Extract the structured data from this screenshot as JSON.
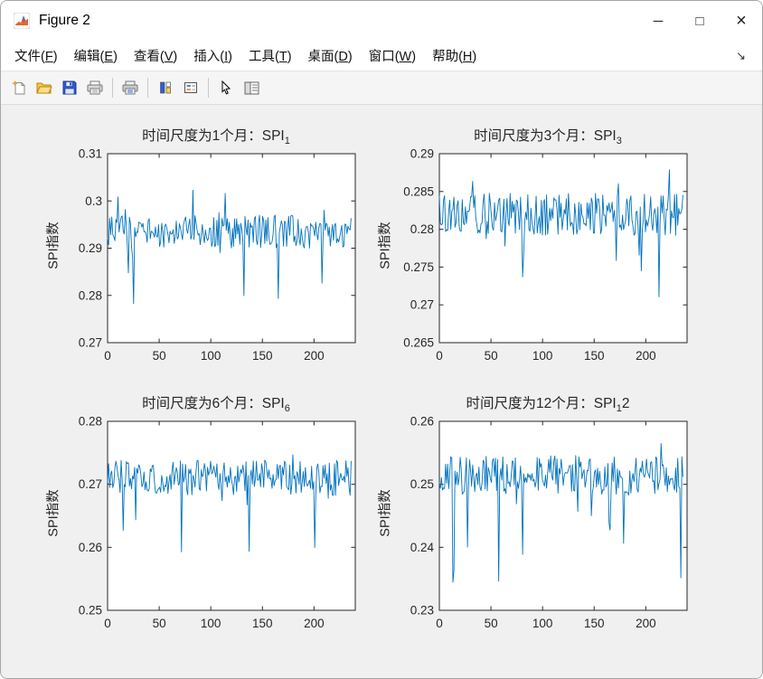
{
  "window": {
    "title": "Figure 2",
    "controls": [
      {
        "name": "minimize",
        "glyph": "─"
      },
      {
        "name": "maximize",
        "glyph": "□"
      },
      {
        "name": "close",
        "glyph": "×"
      }
    ]
  },
  "menubar": {
    "items": [
      {
        "name": "file",
        "text": "文件",
        "key": "F"
      },
      {
        "name": "edit",
        "text": "编辑",
        "key": "E"
      },
      {
        "name": "view",
        "text": "查看",
        "key": "V"
      },
      {
        "name": "insert",
        "text": "插入",
        "key": "I"
      },
      {
        "name": "tools",
        "text": "工具",
        "key": "T"
      },
      {
        "name": "desktop",
        "text": "桌面",
        "key": "D"
      },
      {
        "name": "window",
        "text": "窗口",
        "key": "W"
      },
      {
        "name": "help",
        "text": "帮助",
        "key": "H"
      }
    ],
    "overflow_arrow": "↘"
  },
  "toolbar": {
    "groups": [
      [
        "new-figure-icon",
        "open-file-icon",
        "save-figure-icon",
        "print-figure-icon"
      ],
      [
        "print-preview-icon"
      ],
      [
        "insert-colorbar-icon",
        "insert-legend-icon"
      ],
      [
        "edit-plot-icon",
        "property-inspector-icon"
      ]
    ]
  },
  "colors": {
    "line": "#0072BD",
    "axes": "#262626",
    "figure_bg": "#f0f0f0"
  },
  "chart_data": [
    {
      "type": "line",
      "name": "spi-1",
      "title": {
        "text": "时间尺度为1个月：SPI",
        "sub": "1",
        "tail": ""
      },
      "ylabel": "SPI指数",
      "xlim": [
        0,
        240
      ],
      "ylim": [
        0.27,
        0.31
      ],
      "xticks": [
        0,
        50,
        100,
        150,
        200
      ],
      "xtick_labels": [
        "0",
        "50",
        "100",
        "150",
        "200"
      ],
      "yticks": [
        0.27,
        0.28,
        0.29,
        0.3,
        0.31
      ],
      "ytick_labels": [
        "0.27",
        "0.28",
        "0.29",
        "0.3",
        "0.31"
      ],
      "series": {
        "n": 235,
        "x_max": 236,
        "seed": 20471,
        "base": 0.2935,
        "jitter": 0.0035,
        "spike_prob": 0.07,
        "spike_depth": 0.013,
        "up_prob": 0.03,
        "up_depth": 0.009
      }
    },
    {
      "type": "line",
      "name": "spi-3",
      "title": {
        "text": "时间尺度为3个月：SPI",
        "sub": "3",
        "tail": ""
      },
      "ylabel": "SPI指数",
      "xlim": [
        0,
        240
      ],
      "ylim": [
        0.265,
        0.29
      ],
      "xticks": [
        0,
        50,
        100,
        150,
        200
      ],
      "xtick_labels": [
        "0",
        "50",
        "100",
        "150",
        "200"
      ],
      "yticks": [
        0.265,
        0.27,
        0.275,
        0.28,
        0.285,
        0.29
      ],
      "ytick_labels": [
        "0.265",
        "0.27",
        "0.275",
        "0.28",
        "0.285",
        "0.29"
      ],
      "series": {
        "n": 235,
        "x_max": 236,
        "seed": 8842,
        "base": 0.282,
        "jitter": 0.0028,
        "spike_prob": 0.07,
        "spike_depth": 0.011,
        "up_prob": 0.03,
        "up_depth": 0.006
      }
    },
    {
      "type": "line",
      "name": "spi-6",
      "title": {
        "text": "时间尺度为6个月：SPI",
        "sub": "6",
        "tail": ""
      },
      "ylabel": "SPI指数",
      "xlim": [
        0,
        240
      ],
      "ylim": [
        0.25,
        0.28
      ],
      "xticks": [
        0,
        50,
        100,
        150,
        200
      ],
      "xtick_labels": [
        "0",
        "50",
        "100",
        "150",
        "200"
      ],
      "yticks": [
        0.25,
        0.26,
        0.27,
        0.28
      ],
      "ytick_labels": [
        "0.25",
        "0.26",
        "0.27",
        "0.28"
      ],
      "series": {
        "n": 235,
        "x_max": 236,
        "seed": 5150,
        "base": 0.271,
        "jitter": 0.0028,
        "spike_prob": 0.07,
        "spike_depth": 0.014,
        "up_prob": 0.02,
        "up_depth": 0.005
      }
    },
    {
      "type": "line",
      "name": "spi-12",
      "title": {
        "text": "时间尺度为12个月：SPI",
        "sub": "1",
        "tail": "2"
      },
      "ylabel": "SPI指数",
      "xlim": [
        0,
        240
      ],
      "ylim": [
        0.23,
        0.26
      ],
      "xticks": [
        0,
        50,
        100,
        150,
        200
      ],
      "xtick_labels": [
        "0",
        "50",
        "100",
        "150",
        "200"
      ],
      "yticks": [
        0.23,
        0.24,
        0.25,
        0.26
      ],
      "ytick_labels": [
        "0.23",
        "0.24",
        "0.25",
        "0.26"
      ],
      "series": {
        "n": 235,
        "x_max": 236,
        "seed": 9973,
        "base": 0.2515,
        "jitter": 0.0031,
        "spike_prob": 0.08,
        "spike_depth": 0.017,
        "up_prob": 0.02,
        "up_depth": 0.005
      }
    }
  ]
}
